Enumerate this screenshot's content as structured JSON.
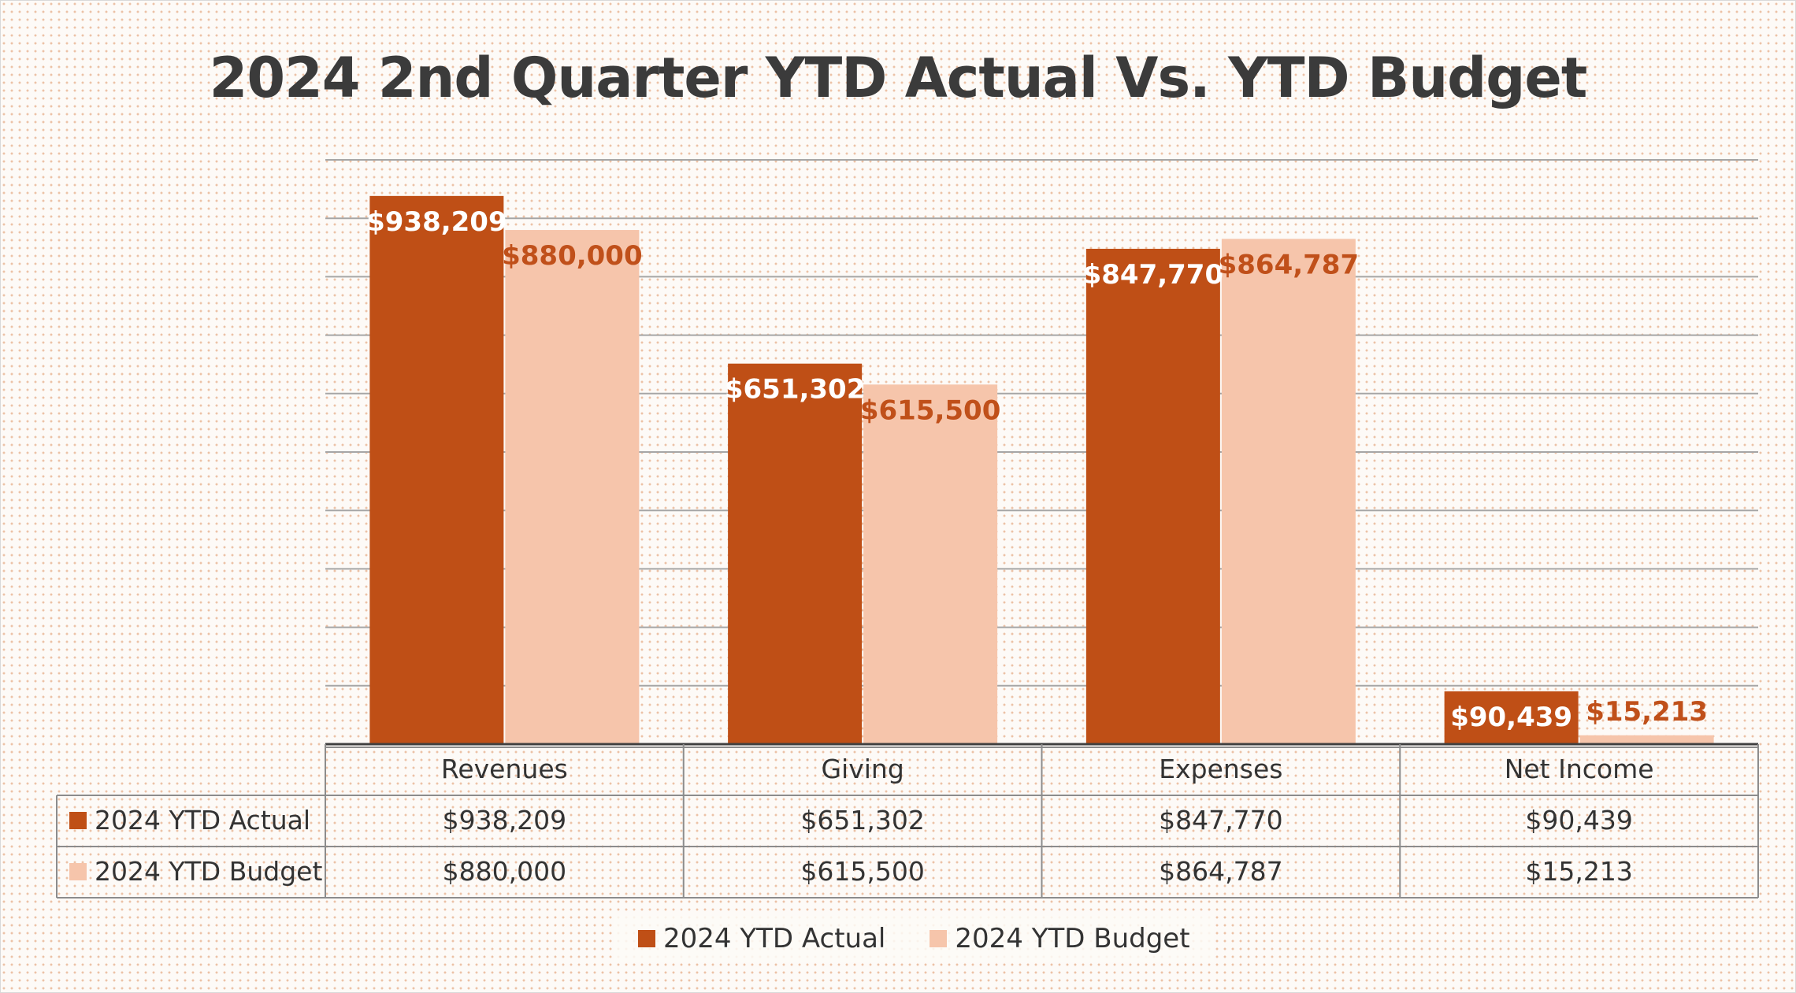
{
  "chart_data": {
    "type": "bar",
    "title": "2024 2nd Quarter YTD Actual Vs. YTD Budget",
    "categories": [
      "Revenues",
      "Giving",
      "Expenses",
      "Net Income"
    ],
    "series": [
      {
        "name": "2024 YTD Actual",
        "color": "#bf4f16",
        "values": [
          938209,
          651302,
          847770,
          90439
        ],
        "labels": [
          "$938,209",
          "$651,302",
          "$847,770",
          "$90,439"
        ],
        "label_color": "#ffffff"
      },
      {
        "name": "2024 YTD Budget",
        "color": "#f6c5ab",
        "values": [
          880000,
          615500,
          864787,
          15213
        ],
        "labels": [
          "$880,000",
          "$615,500",
          "$864,787",
          "$15,213"
        ],
        "label_color": "#c0501a"
      }
    ],
    "ylim": [
      0,
      1000000
    ],
    "grid": true,
    "data_table": true,
    "legend_position": "bottom"
  }
}
